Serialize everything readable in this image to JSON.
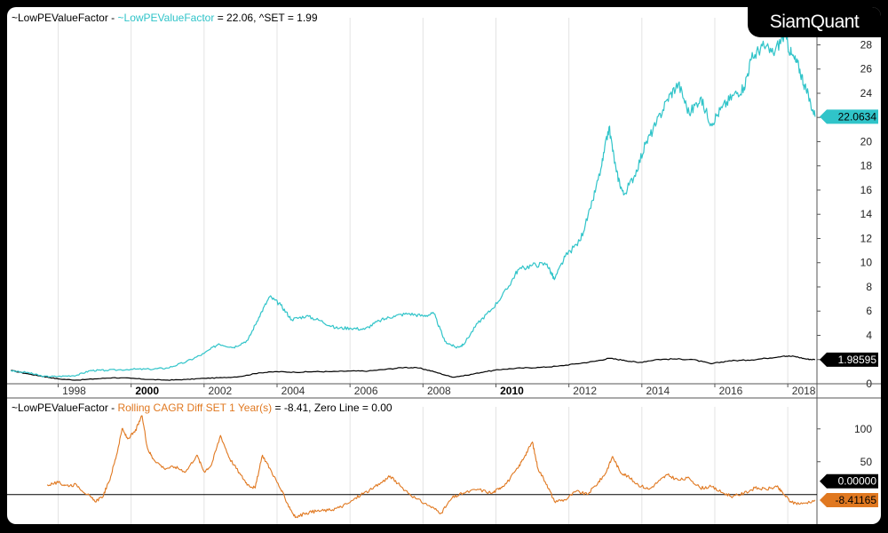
{
  "header_top": {
    "name1": "~LowPEValueFactor - ",
    "name2": "~LowPEValueFactor",
    "rest": " = 22.06, ^SET = 1.99"
  },
  "header_bottom": {
    "name1": "~LowPEValueFactor - ",
    "name2": "Rolling CAGR Diff SET 1 Year(s)",
    "rest": " = -8.41, Zero Line = 0.00"
  },
  "logo_text": "SiamQuant",
  "colors": {
    "factor": "#30c4c9",
    "set_index": "#000000",
    "cagr": "#e07820",
    "zero_line": "#000000"
  },
  "chart_data": [
    {
      "type": "line",
      "x_ticks": [
        "1998",
        "2000",
        "2002",
        "2004",
        "2006",
        "2008",
        "2010",
        "2012",
        "2014",
        "2016",
        "2018"
      ],
      "bold_ticks": [
        "2000",
        "2010"
      ],
      "y_ticks": [
        0,
        2,
        4,
        6,
        8,
        10,
        12,
        14,
        16,
        18,
        20,
        22,
        24,
        26,
        28
      ],
      "ylim": [
        0,
        29.5
      ],
      "xlim": [
        1996.6,
        2018.8
      ],
      "series": [
        {
          "name": "~LowPEValueFactor",
          "last_label": "22.0634",
          "points": [
            [
              1996.7,
              1.1
            ],
            [
              1997.2,
              0.9
            ],
            [
              1997.6,
              0.6
            ],
            [
              1998.0,
              0.6
            ],
            [
              1998.5,
              0.7
            ],
            [
              1998.9,
              1.1
            ],
            [
              1999.3,
              1.1
            ],
            [
              2000.0,
              1.2
            ],
            [
              2000.5,
              1.2
            ],
            [
              2001.0,
              1.3
            ],
            [
              2001.5,
              1.8
            ],
            [
              2002.0,
              2.5
            ],
            [
              2002.4,
              3.3
            ],
            [
              2002.8,
              3.0
            ],
            [
              2003.2,
              3.6
            ],
            [
              2003.5,
              5.5
            ],
            [
              2003.8,
              7.2
            ],
            [
              2004.1,
              6.5
            ],
            [
              2004.4,
              5.3
            ],
            [
              2004.8,
              5.6
            ],
            [
              2005.2,
              5.2
            ],
            [
              2005.6,
              4.6
            ],
            [
              2006.0,
              4.6
            ],
            [
              2006.4,
              4.5
            ],
            [
              2006.8,
              5.2
            ],
            [
              2007.2,
              5.6
            ],
            [
              2007.6,
              5.8
            ],
            [
              2008.0,
              5.6
            ],
            [
              2008.3,
              5.8
            ],
            [
              2008.6,
              3.5
            ],
            [
              2008.9,
              3.0
            ],
            [
              2009.1,
              3.2
            ],
            [
              2009.5,
              5.0
            ],
            [
              2009.9,
              6.2
            ],
            [
              2010.3,
              7.8
            ],
            [
              2010.6,
              9.4
            ],
            [
              2011.0,
              9.8
            ],
            [
              2011.4,
              9.9
            ],
            [
              2011.6,
              8.6
            ],
            [
              2011.9,
              10.5
            ],
            [
              2012.3,
              11.8
            ],
            [
              2012.6,
              14.5
            ],
            [
              2012.9,
              18.0
            ],
            [
              2013.1,
              21.2
            ],
            [
              2013.3,
              17.5
            ],
            [
              2013.5,
              15.6
            ],
            [
              2013.8,
              17.2
            ],
            [
              2014.1,
              19.8
            ],
            [
              2014.4,
              21.5
            ],
            [
              2014.7,
              23.5
            ],
            [
              2015.0,
              24.8
            ],
            [
              2015.3,
              22.3
            ],
            [
              2015.6,
              23.6
            ],
            [
              2015.9,
              21.5
            ],
            [
              2016.2,
              22.8
            ],
            [
              2016.5,
              23.8
            ],
            [
              2016.8,
              24.5
            ],
            [
              2017.0,
              26.8
            ],
            [
              2017.3,
              27.9
            ],
            [
              2017.6,
              27.3
            ],
            [
              2017.9,
              28.8
            ],
            [
              2018.1,
              27.2
            ],
            [
              2018.3,
              26.2
            ],
            [
              2018.5,
              24.3
            ],
            [
              2018.75,
              22.06
            ]
          ]
        },
        {
          "name": "^SET",
          "last_label": "1.98595",
          "points": [
            [
              1996.7,
              1.1
            ],
            [
              1997.2,
              0.8
            ],
            [
              1997.6,
              0.6
            ],
            [
              1998.0,
              0.4
            ],
            [
              1998.5,
              0.3
            ],
            [
              1999.0,
              0.4
            ],
            [
              1999.5,
              0.5
            ],
            [
              2000.0,
              0.45
            ],
            [
              2000.5,
              0.35
            ],
            [
              2001.0,
              0.3
            ],
            [
              2001.5,
              0.35
            ],
            [
              2002.0,
              0.45
            ],
            [
              2002.5,
              0.5
            ],
            [
              2003.0,
              0.6
            ],
            [
              2003.5,
              0.9
            ],
            [
              2004.0,
              1.0
            ],
            [
              2004.5,
              0.95
            ],
            [
              2005.0,
              1.0
            ],
            [
              2005.5,
              1.0
            ],
            [
              2006.0,
              1.05
            ],
            [
              2006.5,
              1.05
            ],
            [
              2007.0,
              1.2
            ],
            [
              2007.5,
              1.35
            ],
            [
              2007.9,
              1.3
            ],
            [
              2008.3,
              1.0
            ],
            [
              2008.8,
              0.55
            ],
            [
              2009.2,
              0.7
            ],
            [
              2009.7,
              1.0
            ],
            [
              2010.2,
              1.2
            ],
            [
              2010.7,
              1.3
            ],
            [
              2011.2,
              1.35
            ],
            [
              2011.7,
              1.45
            ],
            [
              2012.2,
              1.65
            ],
            [
              2012.7,
              1.85
            ],
            [
              2013.1,
              2.1
            ],
            [
              2013.5,
              1.95
            ],
            [
              2013.9,
              1.75
            ],
            [
              2014.4,
              2.0
            ],
            [
              2014.9,
              2.05
            ],
            [
              2015.4,
              2.0
            ],
            [
              2015.9,
              1.65
            ],
            [
              2016.4,
              1.9
            ],
            [
              2016.9,
              1.95
            ],
            [
              2017.4,
              2.1
            ],
            [
              2017.9,
              2.3
            ],
            [
              2018.2,
              2.25
            ],
            [
              2018.5,
              2.05
            ],
            [
              2018.75,
              1.99
            ]
          ]
        }
      ]
    },
    {
      "type": "line",
      "x_ticks": [
        "1998",
        "2000",
        "2002",
        "2004",
        "2006",
        "2008",
        "2010",
        "2012",
        "2014",
        "2016",
        "2018"
      ],
      "y_ticks": [
        50,
        100
      ],
      "ylim": [
        -45,
        120
      ],
      "xlim": [
        1996.6,
        2018.8
      ],
      "series": [
        {
          "name": "Rolling CAGR Diff SET 1 Year(s)",
          "last_label": "-8.41165",
          "points": [
            [
              1997.7,
              15
            ],
            [
              1998.0,
              18
            ],
            [
              1998.2,
              14
            ],
            [
              1998.5,
              15
            ],
            [
              1998.8,
              0
            ],
            [
              1999.0,
              -10
            ],
            [
              1999.2,
              -5
            ],
            [
              1999.4,
              20
            ],
            [
              1999.6,
              60
            ],
            [
              1999.75,
              100
            ],
            [
              1999.9,
              85
            ],
            [
              2000.1,
              95
            ],
            [
              2000.3,
              120
            ],
            [
              2000.45,
              70
            ],
            [
              2000.6,
              55
            ],
            [
              2000.9,
              40
            ],
            [
              2001.2,
              42
            ],
            [
              2001.5,
              35
            ],
            [
              2001.8,
              60
            ],
            [
              2002.0,
              35
            ],
            [
              2002.2,
              45
            ],
            [
              2002.45,
              90
            ],
            [
              2002.7,
              55
            ],
            [
              2003.0,
              30
            ],
            [
              2003.2,
              15
            ],
            [
              2003.4,
              10
            ],
            [
              2003.6,
              60
            ],
            [
              2003.85,
              35
            ],
            [
              2004.1,
              8
            ],
            [
              2004.3,
              -15
            ],
            [
              2004.5,
              -35
            ],
            [
              2004.8,
              -28
            ],
            [
              2005.1,
              -25
            ],
            [
              2005.4,
              -24
            ],
            [
              2005.7,
              -20
            ],
            [
              2006.0,
              -12
            ],
            [
              2006.3,
              0
            ],
            [
              2006.6,
              8
            ],
            [
              2006.9,
              20
            ],
            [
              2007.1,
              28
            ],
            [
              2007.4,
              12
            ],
            [
              2007.8,
              -6
            ],
            [
              2008.2,
              -18
            ],
            [
              2008.5,
              -28
            ],
            [
              2008.8,
              -5
            ],
            [
              2009.1,
              2
            ],
            [
              2009.5,
              8
            ],
            [
              2009.9,
              2
            ],
            [
              2010.1,
              10
            ],
            [
              2010.3,
              18
            ],
            [
              2010.6,
              40
            ],
            [
              2010.8,
              60
            ],
            [
              2011.0,
              80
            ],
            [
              2011.15,
              40
            ],
            [
              2011.4,
              15
            ],
            [
              2011.6,
              -10
            ],
            [
              2011.9,
              -8
            ],
            [
              2012.2,
              5
            ],
            [
              2012.5,
              0
            ],
            [
              2012.8,
              18
            ],
            [
              2013.0,
              32
            ],
            [
              2013.2,
              58
            ],
            [
              2013.4,
              35
            ],
            [
              2013.6,
              28
            ],
            [
              2013.9,
              15
            ],
            [
              2014.2,
              8
            ],
            [
              2014.5,
              22
            ],
            [
              2014.7,
              30
            ],
            [
              2015.0,
              22
            ],
            [
              2015.3,
              25
            ],
            [
              2015.6,
              10
            ],
            [
              2015.9,
              12
            ],
            [
              2016.2,
              3
            ],
            [
              2016.5,
              -3
            ],
            [
              2016.8,
              2
            ],
            [
              2017.1,
              10
            ],
            [
              2017.4,
              8
            ],
            [
              2017.7,
              12
            ],
            [
              2017.9,
              0
            ],
            [
              2018.1,
              -12
            ],
            [
              2018.4,
              -14
            ],
            [
              2018.75,
              -8.41
            ]
          ]
        },
        {
          "name": "Zero Line",
          "last_label": "0.00000",
          "points": [
            [
              1996.6,
              0
            ],
            [
              2018.8,
              0
            ]
          ]
        }
      ]
    }
  ]
}
